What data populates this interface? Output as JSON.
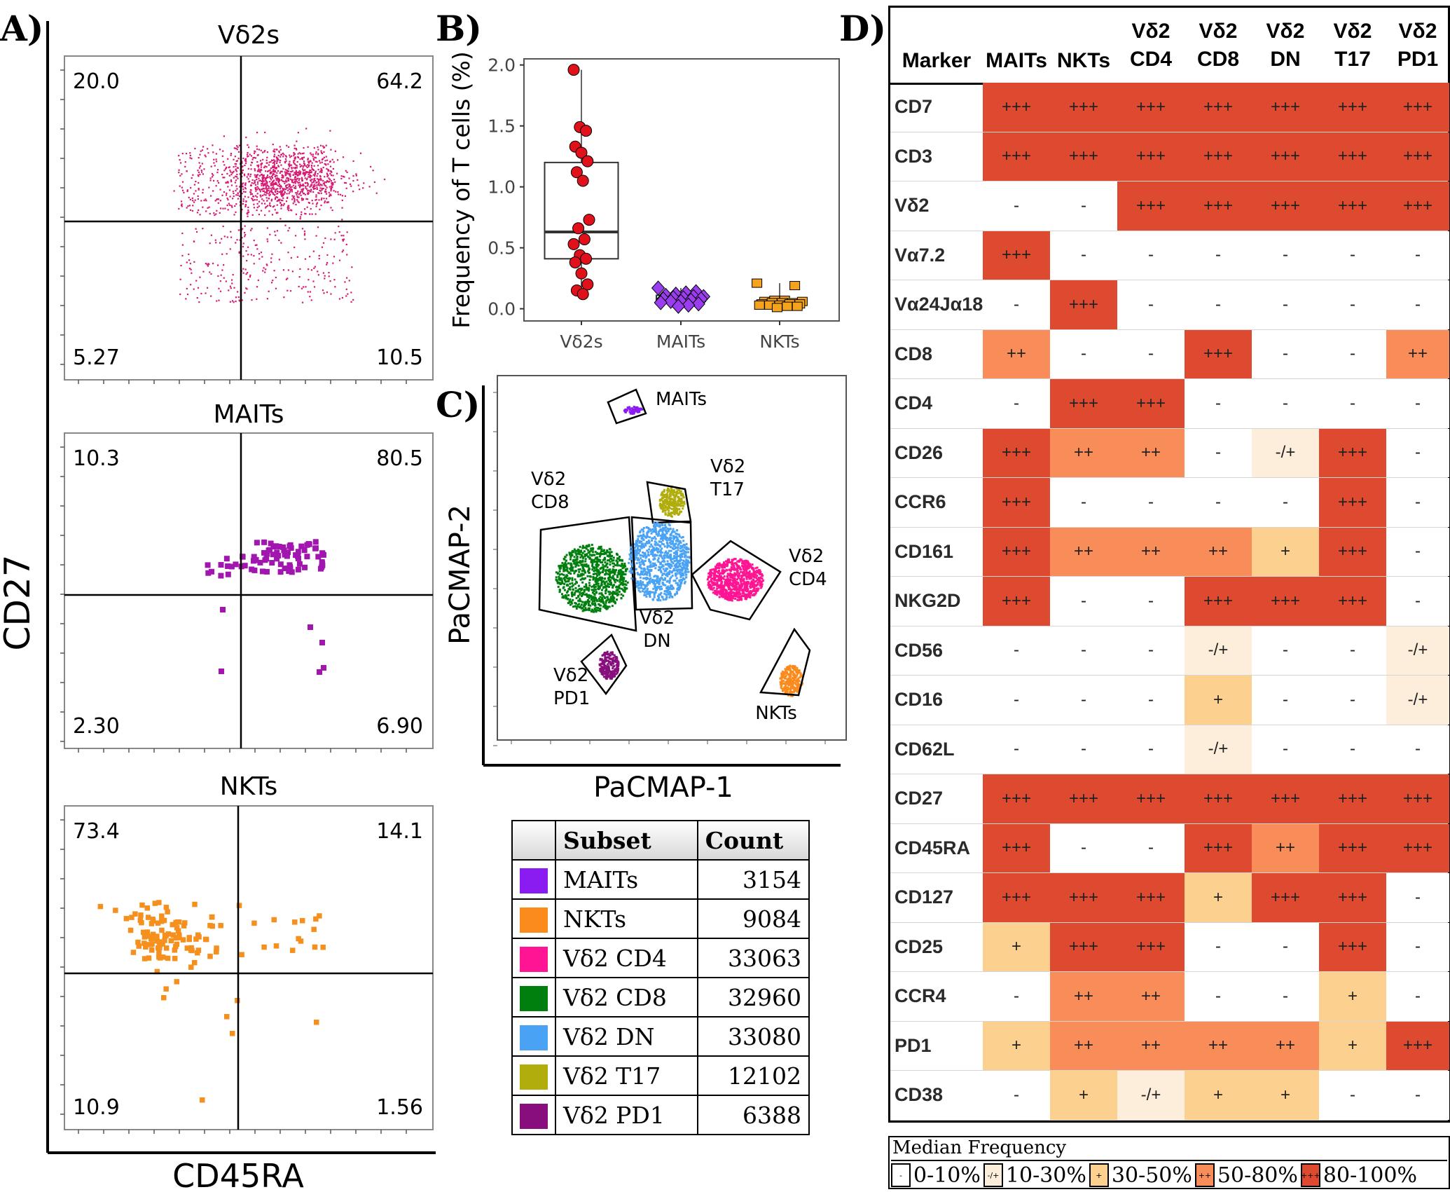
{
  "panelA": {
    "letter": "A)",
    "xlabel": "CD45RA",
    "ylabel": "CD27",
    "plots": [
      {
        "title": "Vδ2s",
        "q_ul": "20.0",
        "q_ur": "64.2",
        "q_ll": "5.27",
        "q_lr": "10.5",
        "color": "#d61a72"
      },
      {
        "title": "MAITs",
        "q_ul": "10.3",
        "q_ur": "80.5",
        "q_ll": "2.30",
        "q_lr": "6.90",
        "color": "#a216b0"
      },
      {
        "title": "NKTs",
        "q_ul": "73.4",
        "q_ur": "14.1",
        "q_ll": "10.9",
        "q_lr": "1.56",
        "color": "#f5901e"
      }
    ]
  },
  "panelB": {
    "letter": "B)",
    "ylabel": "Frequency of T cells (%)"
  },
  "panelC": {
    "letter": "C)",
    "xlabel": "PaCMAP-1",
    "ylabel": "PaCMAP-2",
    "cluster_labels": [
      {
        "id": "maits",
        "text": "MAITs"
      },
      {
        "id": "cd8",
        "text": "Vδ2\nCD8"
      },
      {
        "id": "t17",
        "text": "Vδ2\nT17"
      },
      {
        "id": "cd4",
        "text": "Vδ2\nCD4"
      },
      {
        "id": "dn",
        "text": "Vδ2\nDN"
      },
      {
        "id": "pd1",
        "text": "Vδ2\nPD1"
      },
      {
        "id": "nkts",
        "text": "NKTs"
      }
    ]
  },
  "countTable": {
    "headers": [
      "",
      "Subset",
      "Count"
    ],
    "rows": [
      {
        "subset": "MAITs",
        "count": "3154",
        "color": "#8a1cf2"
      },
      {
        "subset": "NKTs",
        "count": "9084",
        "color": "#fb8b1d"
      },
      {
        "subset": "Vδ2 CD4",
        "count": "33063",
        "color": "#ff1493"
      },
      {
        "subset": "Vδ2 CD8",
        "count": "32960",
        "color": "#007f0e"
      },
      {
        "subset": "Vδ2 DN",
        "count": "33080",
        "color": "#49a2f4"
      },
      {
        "subset": "Vδ2 T17",
        "count": "12102",
        "color": "#b0ad0c"
      },
      {
        "subset": "Vδ2 PD1",
        "count": "6388",
        "color": "#880e7e"
      }
    ]
  },
  "panelD": {
    "letter": "D)",
    "headers": [
      [
        "Marker"
      ],
      [
        "MAITs"
      ],
      [
        "NKTs"
      ],
      [
        "Vδ2",
        "CD4"
      ],
      [
        "Vδ2",
        "CD8"
      ],
      [
        "Vδ2",
        "DN"
      ],
      [
        "Vδ2",
        "T17"
      ],
      [
        "Vδ2",
        "PD1"
      ]
    ],
    "rows": [
      {
        "marker": "CD7",
        "cells": [
          "+++",
          "+++",
          "+++",
          "+++",
          "+++",
          "+++",
          "+++"
        ]
      },
      {
        "marker": "CD3",
        "cells": [
          "+++",
          "+++",
          "+++",
          "+++",
          "+++",
          "+++",
          "+++"
        ]
      },
      {
        "marker": "Vδ2",
        "cells": [
          "-",
          "-",
          "+++",
          "+++",
          "+++",
          "+++",
          "+++"
        ]
      },
      {
        "marker": "Vα7.2",
        "cells": [
          "+++",
          "-",
          "-",
          "-",
          "-",
          "-",
          "-"
        ]
      },
      {
        "marker": "Vα24Jα18",
        "cells": [
          "-",
          "+++",
          "-",
          "-",
          "-",
          "-",
          "-"
        ]
      },
      {
        "marker": "CD8",
        "cells": [
          "++",
          "-",
          "-",
          "+++",
          "-",
          "-",
          "++"
        ]
      },
      {
        "marker": "CD4",
        "cells": [
          "-",
          "+++",
          "+++",
          "-",
          "-",
          "-",
          "-"
        ]
      },
      {
        "marker": "CD26",
        "cells": [
          "+++",
          "++",
          "++",
          "-",
          "-/+",
          "+++",
          "-"
        ]
      },
      {
        "marker": "CCR6",
        "cells": [
          "+++",
          "-",
          "-",
          "-",
          "-",
          "+++",
          "-"
        ]
      },
      {
        "marker": "CD161",
        "cells": [
          "+++",
          "++",
          "++",
          "++",
          "+",
          "+++",
          "-"
        ]
      },
      {
        "marker": "NKG2D",
        "cells": [
          "+++",
          "-",
          "-",
          "+++",
          "+++",
          "+++",
          "-"
        ]
      },
      {
        "marker": "CD56",
        "cells": [
          "-",
          "-",
          "-",
          "-/+",
          "-",
          "-",
          "-/+"
        ]
      },
      {
        "marker": "CD16",
        "cells": [
          "-",
          "-",
          "-",
          "+",
          "-",
          "-",
          "-/+"
        ]
      },
      {
        "marker": "CD62L",
        "cells": [
          "-",
          "-",
          "-",
          "-/+",
          "-",
          "-",
          "-"
        ]
      },
      {
        "marker": "CD27",
        "cells": [
          "+++",
          "+++",
          "+++",
          "+++",
          "+++",
          "+++",
          "+++"
        ]
      },
      {
        "marker": "CD45RA",
        "cells": [
          "+++",
          "-",
          "-",
          "+++",
          "++",
          "+++",
          "+++"
        ]
      },
      {
        "marker": "CD127",
        "cells": [
          "+++",
          "+++",
          "+++",
          "+",
          "+++",
          "+++",
          "-"
        ]
      },
      {
        "marker": "CD25",
        "cells": [
          "+",
          "+++",
          "+++",
          "-",
          "-",
          "+++",
          "-"
        ]
      },
      {
        "marker": "CCR4",
        "cells": [
          "-",
          "++",
          "++",
          "-",
          "-",
          "+",
          "-"
        ]
      },
      {
        "marker": "PD1",
        "cells": [
          "+",
          "++",
          "++",
          "++",
          "++",
          "+",
          "+++"
        ]
      },
      {
        "marker": "CD38",
        "cells": [
          "-",
          "+",
          "-/+",
          "+",
          "+",
          "-",
          "-"
        ]
      }
    ],
    "levels": {
      "-": 0,
      "-/+": 1,
      "+": 2,
      "++": 3,
      "+++": 4
    },
    "legend": {
      "title": "Median Frequency",
      "items": [
        {
          "symbol": "-",
          "label": "0-10%"
        },
        {
          "symbol": "-/+",
          "label": "10-30%"
        },
        {
          "symbol": "+",
          "label": "30-50%"
        },
        {
          "symbol": "++",
          "label": "50-80%"
        },
        {
          "symbol": "+++",
          "label": "80-100%"
        }
      ]
    }
  },
  "chart_data": [
    {
      "type": "scatter",
      "title": "Vδ2s",
      "xlabel": "CD45RA",
      "ylabel": "CD27",
      "quadrant_percentages": {
        "upper_left": 20.0,
        "upper_right": 64.2,
        "lower_left": 5.27,
        "lower_right": 10.5
      }
    },
    {
      "type": "scatter",
      "title": "MAITs",
      "xlabel": "CD45RA",
      "ylabel": "CD27",
      "quadrant_percentages": {
        "upper_left": 10.3,
        "upper_right": 80.5,
        "lower_left": 2.3,
        "lower_right": 6.9
      }
    },
    {
      "type": "scatter",
      "title": "NKTs",
      "xlabel": "CD45RA",
      "ylabel": "CD27",
      "quadrant_percentages": {
        "upper_left": 73.4,
        "upper_right": 14.1,
        "lower_left": 10.9,
        "lower_right": 1.56
      }
    },
    {
      "type": "box",
      "ylabel": "Frequency of T cells (%)",
      "ylim": [
        -0.1,
        2.05
      ],
      "yticks": [
        "0.0",
        "0.5",
        "1.0",
        "1.5",
        "2.0"
      ],
      "categories": [
        "Vδ2s",
        "MAITs",
        "NKTs"
      ],
      "boxes": [
        {
          "name": "Vδ2s",
          "q1": 0.41,
          "median": 0.63,
          "q3": 1.2,
          "min": 0.12,
          "max": 1.96,
          "color": "#e0111b",
          "marker": "circle",
          "points": [
            1.96,
            1.49,
            1.46,
            1.33,
            1.28,
            1.21,
            1.12,
            1.05,
            0.73,
            0.66,
            0.57,
            0.53,
            0.44,
            0.41,
            0.38,
            0.29,
            0.2,
            0.15,
            0.12
          ]
        },
        {
          "name": "MAITs",
          "q1": 0.06,
          "median": 0.08,
          "q3": 0.11,
          "min": 0.02,
          "max": 0.17,
          "color": "#9a3dee",
          "marker": "diamond",
          "points": [
            0.17,
            0.14,
            0.13,
            0.12,
            0.11,
            0.1,
            0.1,
            0.09,
            0.09,
            0.08,
            0.08,
            0.07,
            0.06,
            0.06,
            0.05,
            0.04,
            0.03,
            0.02
          ]
        },
        {
          "name": "NKTs",
          "q1": 0.03,
          "median": 0.045,
          "q3": 0.07,
          "min": 0.01,
          "max": 0.21,
          "color": "#f5a31c",
          "marker": "square",
          "points": [
            0.21,
            0.19,
            0.07,
            0.07,
            0.06,
            0.06,
            0.05,
            0.05,
            0.05,
            0.04,
            0.04,
            0.04,
            0.03,
            0.03,
            0.03,
            0.02,
            0.02,
            0.01
          ]
        }
      ]
    },
    {
      "type": "scatter",
      "xlabel": "PaCMAP-1",
      "ylabel": "PaCMAP-2",
      "clusters": [
        "MAITs",
        "Vδ2 CD8",
        "Vδ2 T17",
        "Vδ2 DN",
        "Vδ2 CD4",
        "Vδ2 PD1",
        "NKTs"
      ]
    },
    {
      "type": "table",
      "columns": [
        "Subset",
        "Count"
      ],
      "rows": [
        [
          "MAITs",
          3154
        ],
        [
          "NKTs",
          9084
        ],
        [
          "Vδ2 CD4",
          33063
        ],
        [
          "Vδ2 CD8",
          32960
        ],
        [
          "Vδ2 DN",
          33080
        ],
        [
          "Vδ2 T17",
          12102
        ],
        [
          "Vδ2 PD1",
          6388
        ]
      ]
    },
    {
      "type": "heatmap",
      "columns": [
        "MAITs",
        "NKTs",
        "Vδ2 CD4",
        "Vδ2 CD8",
        "Vδ2 DN",
        "Vδ2 T17",
        "Vδ2 PD1"
      ],
      "row_header": "Marker",
      "note": "cell values listed in panelD.rows"
    }
  ]
}
